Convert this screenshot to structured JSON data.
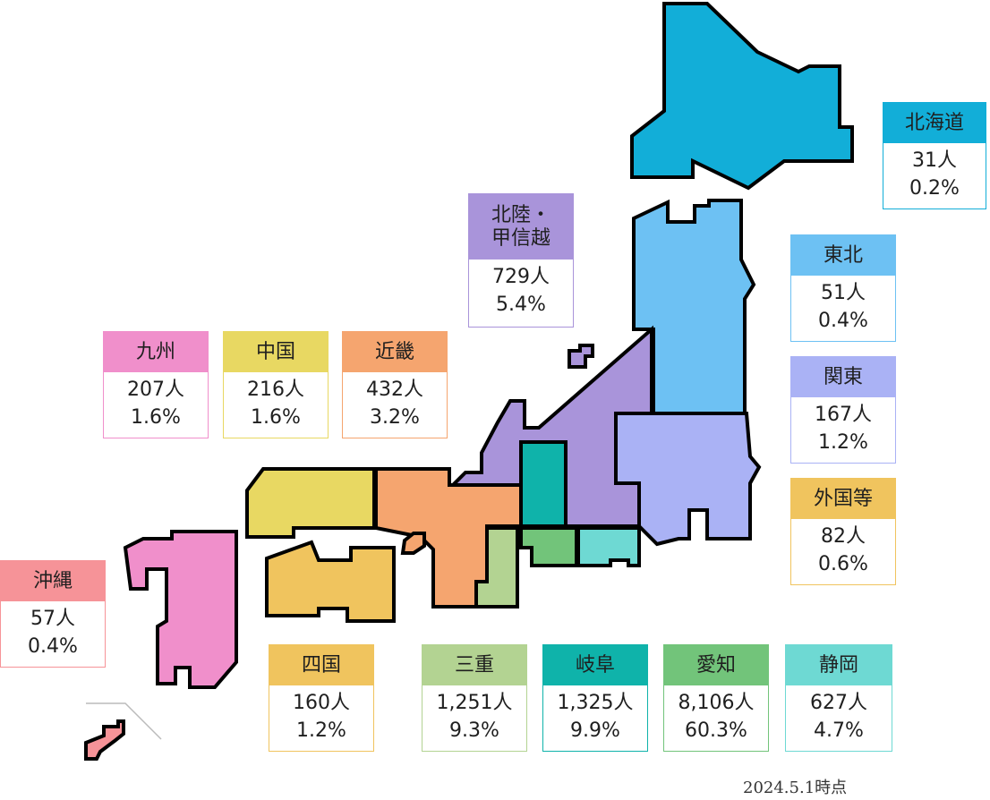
{
  "colors": {
    "hokkaido": "#12aed8",
    "tohoku": "#6dc1f3",
    "kanto": "#aab2f5",
    "hokuriku": "#a994da",
    "kinki": "#f5a56f",
    "chugoku": "#e8d862",
    "shikoku": "#f0c45e",
    "kyushu": "#f08fcb",
    "okinawa": "#f69398",
    "mie": "#b3d392",
    "gifu": "#0fb3aa",
    "aichi": "#72c47a",
    "shizuoka": "#6ed9d3",
    "foreign": "#f0c45e"
  },
  "regions": [
    {
      "key": "hokkaido",
      "name": "北海道",
      "count": "31人",
      "percent": "0.2%"
    },
    {
      "key": "tohoku",
      "name": "東北",
      "count": "51人",
      "percent": "0.4%"
    },
    {
      "key": "kanto",
      "name": "関東",
      "count": "167人",
      "percent": "1.2%"
    },
    {
      "key": "foreign",
      "name": "外国等",
      "count": "82人",
      "percent": "0.6%"
    },
    {
      "key": "hokuriku",
      "name_line1": "北陸・",
      "name_line2": "甲信越",
      "count": "729人",
      "percent": "5.4%"
    },
    {
      "key": "kyushu",
      "name": "九州",
      "count": "207人",
      "percent": "1.6%"
    },
    {
      "key": "chugoku",
      "name": "中国",
      "count": "216人",
      "percent": "1.6%"
    },
    {
      "key": "kinki",
      "name": "近畿",
      "count": "432人",
      "percent": "3.2%"
    },
    {
      "key": "okinawa",
      "name": "沖縄",
      "count": "57人",
      "percent": "0.4%"
    },
    {
      "key": "shikoku",
      "name": "四国",
      "count": "160人",
      "percent": "1.2%"
    },
    {
      "key": "mie",
      "name": "三重",
      "count": "1,251人",
      "percent": "9.3%"
    },
    {
      "key": "gifu",
      "name": "岐阜",
      "count": "1,325人",
      "percent": "9.9%"
    },
    {
      "key": "aichi",
      "name": "愛知",
      "count": "8,106人",
      "percent": "60.3%"
    },
    {
      "key": "shizuoka",
      "name": "静岡",
      "count": "627人",
      "percent": "4.7%"
    }
  ],
  "footnote": "2024.5.1時点"
}
